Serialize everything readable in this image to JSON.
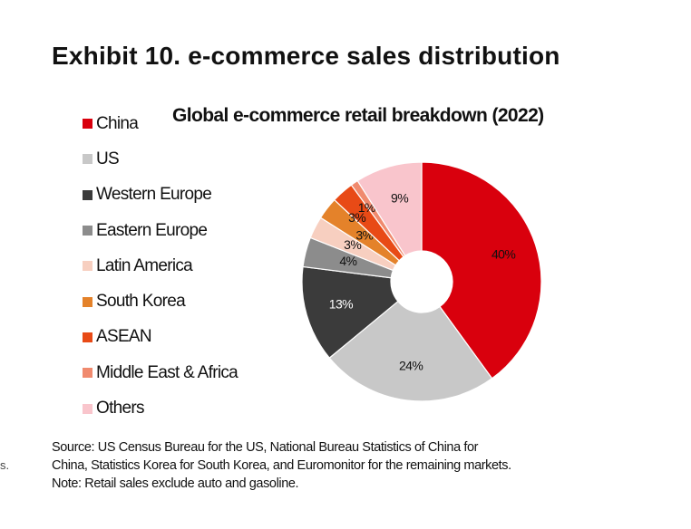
{
  "exhibit_title": "Exhibit 10. e-commerce sales distribution",
  "edge_text": "s.",
  "source": {
    "line1": "Source: US Census Bureau for the US, National Bureau Statistics of China for",
    "line2": "China, Statistics Korea for South Korea, and Euromonitor for the remaining markets.",
    "line3": "Note: Retail sales exclude auto and gasoline."
  },
  "chart_data": {
    "type": "pie",
    "donut": true,
    "title": "Global e-commerce retail breakdown (2022)",
    "legend_position": "left",
    "slices": [
      {
        "name": "China",
        "value": 40,
        "label": "40%",
        "color": "#d9000d"
      },
      {
        "name": "US",
        "value": 24,
        "label": "24%",
        "color": "#c8c8c8"
      },
      {
        "name": "Western Europe",
        "value": 13,
        "label": "13%",
        "color": "#3b3b3b"
      },
      {
        "name": "Eastern Europe",
        "value": 4,
        "label": "4%",
        "color": "#8c8c8c"
      },
      {
        "name": "Latin America",
        "value": 3,
        "label": "3%",
        "color": "#f7cfc0"
      },
      {
        "name": "South Korea",
        "value": 3,
        "label": "3%",
        "color": "#e4822a"
      },
      {
        "name": "ASEAN",
        "value": 3,
        "label": "3%",
        "color": "#e84a16"
      },
      {
        "name": "Middle East & Africa",
        "value": 1,
        "label": "1%",
        "color": "#f08a6e"
      },
      {
        "name": "Others",
        "value": 9,
        "label": "9%",
        "color": "#f9c5cc"
      }
    ]
  }
}
